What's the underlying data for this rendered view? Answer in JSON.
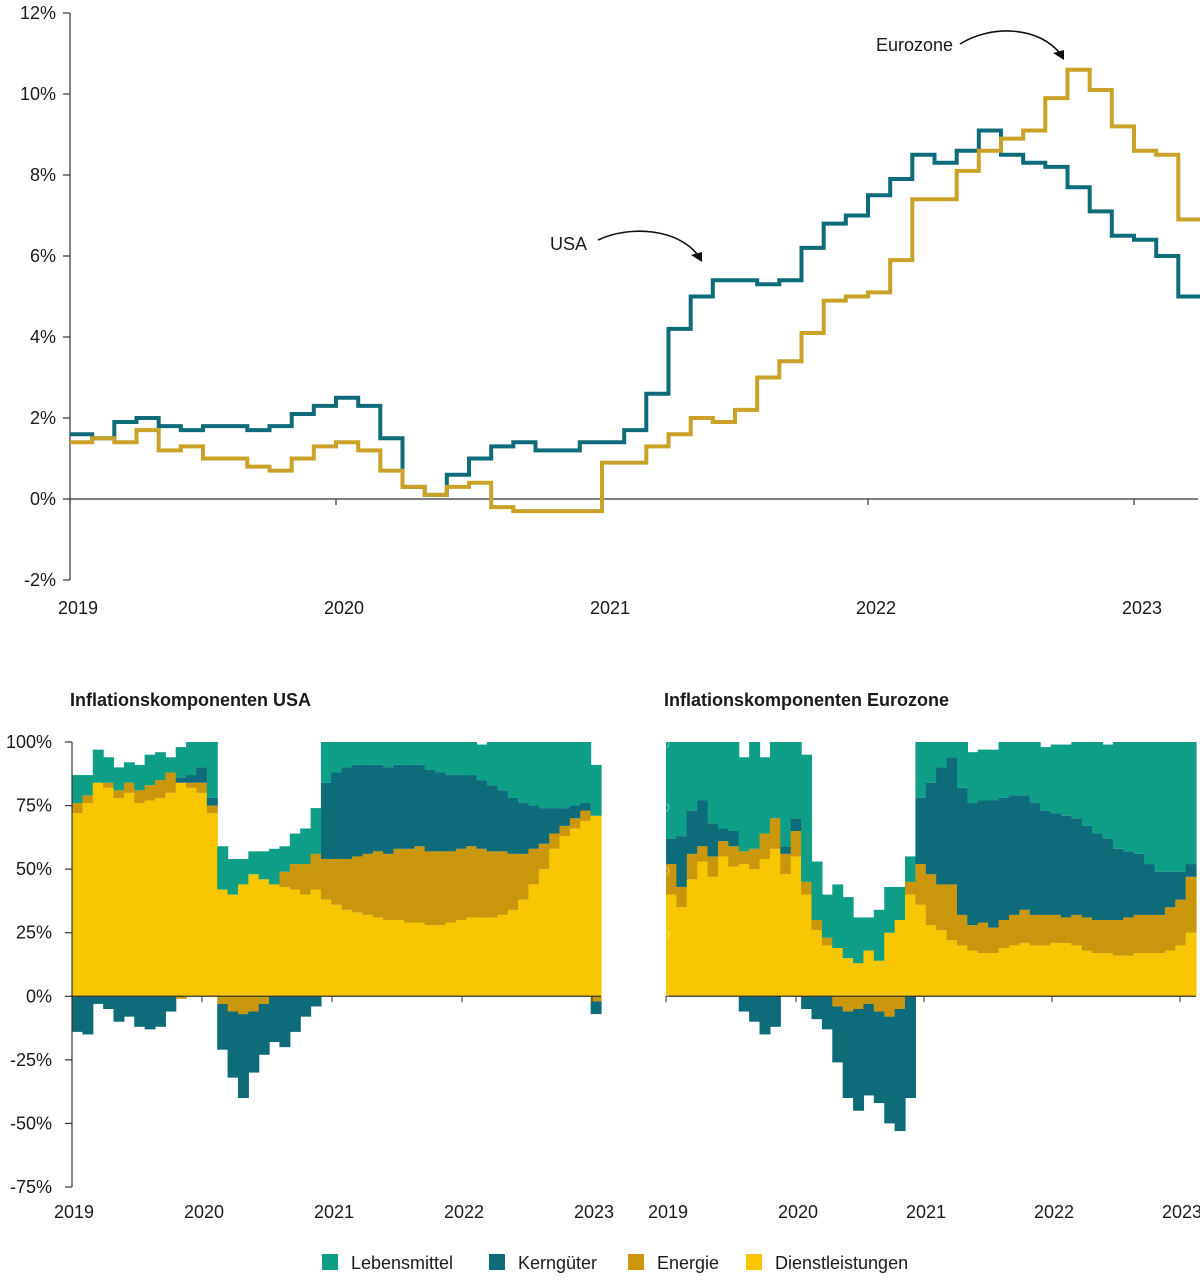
{
  "chart_data": [
    {
      "type": "line",
      "ylim": [
        -2,
        12
      ],
      "yticks": [
        "-2%",
        "0%",
        "2%",
        "4%",
        "6%",
        "8%",
        "10%",
        "12%"
      ],
      "xticks": [
        "2019",
        "2020",
        "2021",
        "2022",
        "2023"
      ],
      "x": [
        "2019-01",
        "2019-02",
        "2019-03",
        "2019-04",
        "2019-05",
        "2019-06",
        "2019-07",
        "2019-08",
        "2019-09",
        "2019-10",
        "2019-11",
        "2019-12",
        "2020-01",
        "2020-02",
        "2020-03",
        "2020-04",
        "2020-05",
        "2020-06",
        "2020-07",
        "2020-08",
        "2020-09",
        "2020-10",
        "2020-11",
        "2020-12",
        "2021-01",
        "2021-02",
        "2021-03",
        "2021-04",
        "2021-05",
        "2021-06",
        "2021-07",
        "2021-08",
        "2021-09",
        "2021-10",
        "2021-11",
        "2021-12",
        "2022-01",
        "2022-02",
        "2022-03",
        "2022-04",
        "2022-05",
        "2022-06",
        "2022-07",
        "2022-08",
        "2022-09",
        "2022-10",
        "2022-11",
        "2022-12",
        "2023-01",
        "2023-02",
        "2023-03"
      ],
      "series": [
        {
          "name": "USA",
          "color": "#0e6b7a",
          "values": [
            1.6,
            1.5,
            1.9,
            2.0,
            1.8,
            1.7,
            1.8,
            1.8,
            1.7,
            1.8,
            2.1,
            2.3,
            2.5,
            2.3,
            1.5,
            0.3,
            0.1,
            0.6,
            1.0,
            1.3,
            1.4,
            1.2,
            1.2,
            1.4,
            1.4,
            1.7,
            2.6,
            4.2,
            5.0,
            5.4,
            5.4,
            5.3,
            5.4,
            6.2,
            6.8,
            7.0,
            7.5,
            7.9,
            8.5,
            8.3,
            8.6,
            9.1,
            8.5,
            8.3,
            8.2,
            7.7,
            7.1,
            6.5,
            6.4,
            6.0,
            5.0
          ]
        },
        {
          "name": "Eurozone",
          "color": "#c9a227",
          "values": [
            1.4,
            1.5,
            1.4,
            1.7,
            1.2,
            1.3,
            1.0,
            1.0,
            0.8,
            0.7,
            1.0,
            1.3,
            1.4,
            1.2,
            0.7,
            0.3,
            0.1,
            0.3,
            0.4,
            -0.2,
            -0.3,
            -0.3,
            -0.3,
            -0.3,
            0.9,
            0.9,
            1.3,
            1.6,
            2.0,
            1.9,
            2.2,
            3.0,
            3.4,
            4.1,
            4.9,
            5.0,
            5.1,
            5.9,
            7.4,
            7.4,
            8.1,
            8.6,
            8.9,
            9.1,
            9.9,
            10.6,
            10.1,
            9.2,
            8.6,
            8.5,
            6.9
          ]
        }
      ],
      "annotations": [
        "USA",
        "Eurozone"
      ]
    },
    {
      "type": "area",
      "title": "Inflationskomponenten USA",
      "ylim": [
        -75,
        100
      ],
      "yticks": [
        "-75%",
        "-50%",
        "-25%",
        "0%",
        "25%",
        "50%",
        "75%",
        "100%"
      ],
      "xticks": [
        "2019",
        "2020",
        "2021",
        "2022",
        "2023"
      ],
      "stack_order": [
        "Dienstleistungen",
        "Energie",
        "Kerngüter",
        "Lebensmittel"
      ],
      "series": [
        {
          "name": "Dienstleistungen",
          "values": [
            72,
            76,
            84,
            82,
            78,
            80,
            76,
            77,
            78,
            80,
            84,
            82,
            80,
            72,
            42,
            40,
            44,
            48,
            46,
            44,
            43,
            42,
            40,
            42,
            38,
            36,
            34,
            33,
            32,
            31,
            30,
            30,
            29,
            29,
            28,
            28,
            29,
            30,
            31,
            31,
            31,
            32,
            34,
            38,
            44,
            50,
            58,
            63,
            66,
            69,
            71
          ]
        },
        {
          "name": "Energie",
          "values": [
            4,
            3,
            0,
            2,
            3,
            4,
            5,
            6,
            7,
            8,
            -1,
            2,
            4,
            3,
            -3,
            -6,
            -7,
            -6,
            -3,
            0,
            6,
            10,
            12,
            14,
            16,
            18,
            20,
            22,
            24,
            26,
            26,
            28,
            29,
            30,
            29,
            29,
            28,
            28,
            28,
            27,
            26,
            25,
            22,
            18,
            14,
            10,
            6,
            4,
            4,
            4,
            -2
          ]
        },
        {
          "name": "Kerngüter",
          "values": [
            -14,
            -15,
            -3,
            -5,
            -10,
            -8,
            -12,
            -13,
            -12,
            -6,
            2,
            3,
            6,
            3,
            -18,
            -26,
            -33,
            -24,
            -20,
            -18,
            -20,
            -14,
            -8,
            -4,
            30,
            34,
            36,
            36,
            35,
            34,
            34,
            33,
            33,
            32,
            32,
            31,
            30,
            29,
            28,
            27,
            26,
            24,
            22,
            20,
            17,
            14,
            10,
            7,
            5,
            3,
            -5
          ]
        },
        {
          "name": "Lebensmittel",
          "values": [
            11,
            8,
            13,
            10,
            9,
            8,
            10,
            12,
            11,
            6,
            12,
            13,
            10,
            22,
            17,
            14,
            10,
            9,
            11,
            14,
            10,
            12,
            14,
            18,
            16,
            12,
            10,
            9,
            9,
            9,
            10,
            9,
            9,
            9,
            11,
            12,
            13,
            13,
            13,
            14,
            17,
            19,
            22,
            24,
            25,
            26,
            26,
            26,
            25,
            24,
            20
          ]
        }
      ]
    },
    {
      "type": "area",
      "title": "Inflationskomponenten Eurozone",
      "ylim": [
        -75,
        100
      ],
      "yticks": [
        "-75%",
        "-50%",
        "-25%",
        "0%",
        "25%",
        "50%",
        "75%",
        "100%"
      ],
      "xticks": [
        "2019",
        "2020",
        "2021",
        "2022",
        "2023"
      ],
      "stack_order": [
        "Dienstleistungen",
        "Energie",
        "Kerngüter",
        "Lebensmittel"
      ],
      "series": [
        {
          "name": "Dienstleistungen",
          "values": [
            40,
            35,
            46,
            53,
            47,
            55,
            51,
            52,
            50,
            54,
            58,
            48,
            55,
            40,
            26,
            20,
            19,
            15,
            13,
            18,
            14,
            25,
            30,
            40,
            36,
            28,
            26,
            22,
            20,
            18,
            17,
            17,
            19,
            20,
            21,
            20,
            20,
            21,
            21,
            20,
            18,
            17,
            17,
            16,
            16,
            17,
            17,
            17,
            18,
            20,
            25
          ]
        },
        {
          "name": "Energie",
          "values": [
            12,
            8,
            10,
            6,
            8,
            6,
            8,
            5,
            8,
            10,
            12,
            8,
            10,
            5,
            4,
            3,
            -4,
            -6,
            -5,
            -3,
            -6,
            -8,
            -5,
            5,
            16,
            20,
            18,
            22,
            12,
            10,
            12,
            10,
            11,
            12,
            13,
            12,
            12,
            11,
            10,
            12,
            13,
            13,
            13,
            14,
            15,
            15,
            15,
            15,
            17,
            18,
            22
          ]
        },
        {
          "name": "Kerngüter",
          "values": [
            10,
            20,
            17,
            18,
            13,
            5,
            6,
            -6,
            -10,
            -15,
            -12,
            3,
            5,
            -5,
            -9,
            -13,
            -22,
            -34,
            -40,
            -36,
            -36,
            -42,
            -48,
            -40,
            26,
            36,
            46,
            50,
            50,
            48,
            48,
            50,
            48,
            47,
            45,
            44,
            41,
            40,
            40,
            38,
            36,
            34,
            32,
            28,
            26,
            24,
            20,
            17,
            14,
            11,
            5
          ]
        },
        {
          "name": "Lebensmittel",
          "values": [
            38,
            37,
            27,
            23,
            32,
            34,
            35,
            37,
            42,
            30,
            30,
            41,
            30,
            50,
            23,
            17,
            25,
            24,
            18,
            13,
            20,
            18,
            13,
            10,
            22,
            16,
            10,
            6,
            18,
            20,
            20,
            20,
            22,
            21,
            21,
            24,
            25,
            27,
            28,
            30,
            33,
            36,
            37,
            42,
            43,
            44,
            48,
            51,
            51,
            51,
            48
          ]
        }
      ]
    }
  ],
  "legend": [
    {
      "label": "Lebensmittel",
      "color": "#0f9e86"
    },
    {
      "label": "Kerngüter",
      "color": "#0e6b7a"
    },
    {
      "label": "Energie",
      "color": "#c9960c"
    },
    {
      "label": "Dienstleistungen",
      "color": "#f7c600"
    }
  ]
}
